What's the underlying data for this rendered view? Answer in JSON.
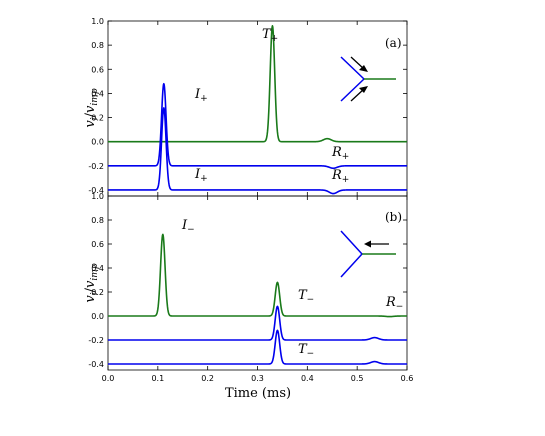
{
  "colors": {
    "green": "#1a7a1a",
    "blue": "#0000ee",
    "axes": "#000000"
  },
  "xlabel": "Time (ms)",
  "chart_data": [
    {
      "type": "line",
      "panel_label": "(a)",
      "ylabel": "v_i/v_imp",
      "ylabel_parts": {
        "v": "v",
        "sub1": "i",
        "slash": "/",
        "v2": "v",
        "sub2": "imp"
      },
      "xlim": [
        0.0,
        0.6
      ],
      "ylim": [
        -0.45,
        1.0
      ],
      "yticks": [
        "1.0",
        "0.8",
        "0.6",
        "0.4",
        "0.2",
        "0.0",
        "-0.2",
        "-0.4"
      ],
      "ytick_values": [
        1.0,
        0.8,
        0.6,
        0.4,
        0.2,
        0.0,
        -0.2,
        -0.4
      ],
      "series": [
        {
          "baseline": 0.0,
          "color": "green",
          "peaks": [
            {
              "t": 0.33,
              "amp": 0.96,
              "w": 0.0045
            },
            {
              "t": 0.44,
              "amp": 0.025,
              "w": 0.008
            }
          ]
        },
        {
          "baseline": -0.2,
          "color": "blue",
          "peaks": [
            {
              "t": 0.112,
              "amp": 0.68,
              "w": 0.0045
            },
            {
              "t": 0.452,
              "amp": -0.02,
              "w": 0.008
            }
          ]
        },
        {
          "baseline": -0.4,
          "color": "blue",
          "peaks": [
            {
              "t": 0.112,
              "amp": 0.68,
              "w": 0.0045
            },
            {
              "t": 0.452,
              "amp": -0.03,
              "w": 0.008
            }
          ]
        }
      ],
      "annotations": [
        {
          "base": "T",
          "sub": "+"
        },
        {
          "base": "I",
          "sub": "+"
        },
        {
          "base": "R",
          "sub": "+"
        },
        {
          "base": "I",
          "sub": "+"
        },
        {
          "base": "R",
          "sub": "+"
        }
      ]
    },
    {
      "type": "line",
      "panel_label": "(b)",
      "ylabel": "v_i/v_imp",
      "ylabel_parts": {
        "v": "v",
        "sub1": "i",
        "slash": "/",
        "v2": "v",
        "sub2": "imp"
      },
      "xlim": [
        0.0,
        0.6
      ],
      "ylim": [
        -0.45,
        1.0
      ],
      "xticks": [
        "0.0",
        "0.1",
        "0.2",
        "0.3",
        "0.4",
        "0.5",
        "0.6"
      ],
      "xtick_values": [
        0.0,
        0.1,
        0.2,
        0.3,
        0.4,
        0.5,
        0.6
      ],
      "yticks": [
        "1.0",
        "0.8",
        "0.6",
        "0.4",
        "0.2",
        "0.0",
        "-0.2",
        "-0.4"
      ],
      "ytick_values": [
        1.0,
        0.8,
        0.6,
        0.4,
        0.2,
        0.0,
        -0.2,
        -0.4
      ],
      "series": [
        {
          "baseline": 0.0,
          "color": "green",
          "peaks": [
            {
              "t": 0.11,
              "amp": 0.68,
              "w": 0.0045
            },
            {
              "t": 0.34,
              "amp": 0.28,
              "w": 0.0045
            },
            {
              "t": 0.565,
              "amp": -0.005,
              "w": 0.008
            }
          ]
        },
        {
          "baseline": -0.2,
          "color": "blue",
          "peaks": [
            {
              "t": 0.34,
              "amp": 0.28,
              "w": 0.0045
            },
            {
              "t": 0.535,
              "amp": 0.02,
              "w": 0.008
            }
          ]
        },
        {
          "baseline": -0.4,
          "color": "blue",
          "peaks": [
            {
              "t": 0.34,
              "amp": 0.28,
              "w": 0.0045
            },
            {
              "t": 0.535,
              "amp": 0.02,
              "w": 0.008
            }
          ]
        }
      ],
      "annotations": [
        {
          "base": "I",
          "sub": "−"
        },
        {
          "base": "T",
          "sub": "−"
        },
        {
          "base": "R",
          "sub": "−"
        },
        {
          "base": "T",
          "sub": "−"
        }
      ]
    }
  ]
}
